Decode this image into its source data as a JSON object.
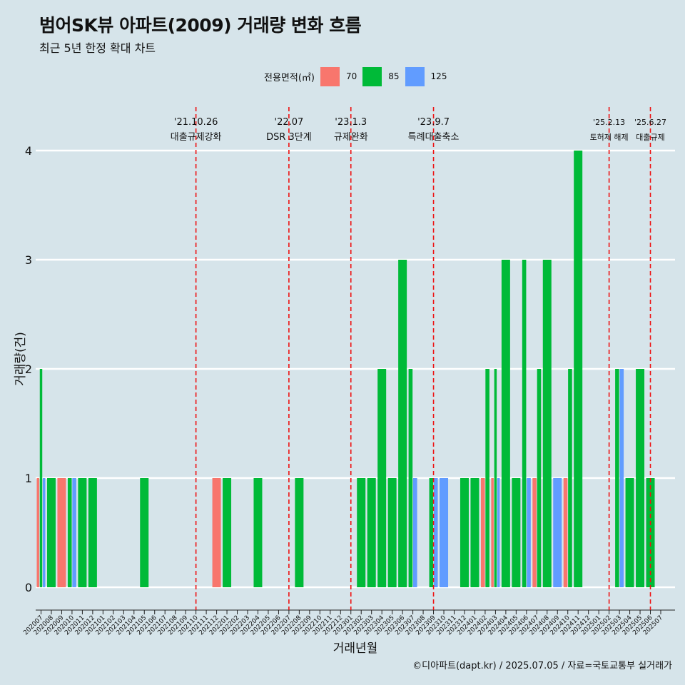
{
  "title": "범어SK뷰 아파트(2009) 거래량 변화 흐름",
  "subtitle": "최근 5년 한정 확대 차트",
  "caption": "©디아파트(dapt.kr) / 2025.07.05 / 자료=국토교통부 실거래가",
  "legend": {
    "title": "전용면적(㎡)",
    "items": [
      {
        "label": "70",
        "color": "#F8766D"
      },
      {
        "label": "85",
        "color": "#00BA38"
      },
      {
        "label": "125",
        "color": "#619CFF"
      }
    ]
  },
  "chart_data": {
    "type": "bar",
    "stacked": false,
    "xlabel": "거래년월",
    "ylabel": "거래량(건)",
    "ylim": [
      0,
      4
    ],
    "yticks": [
      0,
      1,
      2,
      3,
      4
    ],
    "grid": true,
    "legend_position": "top",
    "categories": [
      "202007",
      "202008",
      "202009",
      "202010",
      "202011",
      "202012",
      "202101",
      "202102",
      "202103",
      "202104",
      "202105",
      "202106",
      "202107",
      "202108",
      "202109",
      "202110",
      "202111",
      "202112",
      "202201",
      "202202",
      "202203",
      "202204",
      "202205",
      "202206",
      "202207",
      "202208",
      "202209",
      "202210",
      "202211",
      "202212",
      "202301",
      "202302",
      "202303",
      "202304",
      "202305",
      "202306",
      "202307",
      "202308",
      "202309",
      "202310",
      "202311",
      "202312",
      "202401",
      "202402",
      "202403",
      "202404",
      "202405",
      "202406",
      "202407",
      "202408",
      "202409",
      "202410",
      "202411",
      "202412",
      "202501",
      "202502",
      "202503",
      "202504",
      "202505",
      "202506",
      "202507"
    ],
    "series": [
      {
        "name": "70",
        "color": "#F8766D",
        "values": [
          1,
          0,
          1,
          0,
          0,
          0,
          0,
          0,
          0,
          0,
          0,
          0,
          0,
          0,
          0,
          0,
          0,
          1,
          0,
          0,
          0,
          0,
          0,
          0,
          0,
          0,
          0,
          0,
          0,
          0,
          0,
          0,
          0,
          0,
          0,
          0,
          0,
          0,
          0,
          0,
          0,
          0,
          0,
          1,
          1,
          0,
          0,
          0,
          1,
          0,
          0,
          1,
          0,
          0,
          0,
          0,
          0,
          0,
          0,
          0,
          0
        ]
      },
      {
        "name": "85",
        "color": "#00BA38",
        "values": [
          2,
          1,
          0,
          1,
          1,
          1,
          0,
          0,
          0,
          0,
          1,
          0,
          0,
          0,
          0,
          0,
          0,
          0,
          1,
          0,
          0,
          1,
          0,
          0,
          0,
          1,
          0,
          0,
          0,
          0,
          0,
          1,
          1,
          2,
          1,
          3,
          2,
          0,
          1,
          0,
          0,
          1,
          1,
          2,
          2,
          3,
          1,
          3,
          2,
          3,
          0,
          2,
          4,
          0,
          0,
          0,
          2,
          1,
          2,
          1,
          0
        ]
      },
      {
        "name": "125",
        "color": "#619CFF",
        "values": [
          1,
          0,
          0,
          1,
          0,
          0,
          0,
          0,
          0,
          0,
          0,
          0,
          0,
          0,
          0,
          0,
          0,
          0,
          0,
          0,
          0,
          0,
          0,
          0,
          0,
          0,
          0,
          0,
          0,
          0,
          0,
          0,
          0,
          0,
          0,
          0,
          1,
          0,
          1,
          1,
          0,
          0,
          0,
          0,
          1,
          0,
          0,
          1,
          0,
          0,
          1,
          0,
          0,
          0,
          0,
          0,
          2,
          0,
          0,
          0,
          0
        ]
      }
    ],
    "annotations": [
      {
        "date": "'21.10.26",
        "label": "대출규제강화",
        "x": "202110"
      },
      {
        "date": "'22.07",
        "label": "DSR 3단계",
        "x": "202207"
      },
      {
        "date": "'23.1.3",
        "label": "규제완화",
        "x": "202301"
      },
      {
        "date": "'23.9.7",
        "label": "특례대출축소",
        "x": "202309"
      },
      {
        "date": "'25.2.13",
        "label": "토허제 해제",
        "x": "202502"
      },
      {
        "date": "'25.6.27",
        "label": "대출규제",
        "x": "202506"
      }
    ]
  }
}
